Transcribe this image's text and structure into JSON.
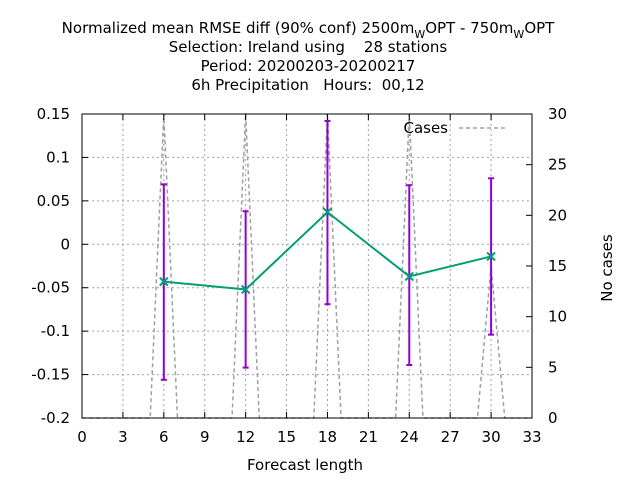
{
  "chart_data": {
    "type": "line",
    "title": {
      "line1_prefix": "Normalized mean RMSE diff (90% conf) 2500m",
      "line1_sub1": "W",
      "line1_mid": "OPT - 750m",
      "line1_sub2": "W",
      "line1_suffix": "OPT",
      "line2": "Selection: Ireland using    28 stations",
      "line3": "Period: 20200203-20200217",
      "line4": "6h Precipitation   Hours:  00,12"
    },
    "xlabel": "Forecast length",
    "ylabel": "",
    "y2label": "No cases",
    "xlim": [
      0,
      33
    ],
    "ylim": [
      -0.2,
      0.15
    ],
    "y2lim": [
      0,
      30
    ],
    "xticks": [
      "0",
      "3",
      "6",
      "9",
      "12",
      "15",
      "18",
      "21",
      "24",
      "27",
      "30",
      "33"
    ],
    "yticks": [
      "-0.2",
      "-0.15",
      "-0.1",
      "-0.05",
      "0",
      "0.05",
      "0.1",
      "0.15"
    ],
    "y2ticks": [
      "0",
      "5",
      "10",
      "15",
      "20",
      "25",
      "30"
    ],
    "grid": true,
    "legend_position": "top-right",
    "series": [
      {
        "name": "",
        "role": "mean difference with 90% confidence interval",
        "color": "#009e73",
        "errorbar_color": "#9400d3",
        "x": [
          6,
          12,
          18,
          24,
          30
        ],
        "y": [
          -0.043,
          -0.052,
          0.037,
          -0.037,
          -0.014
        ],
        "ylow": [
          -0.156,
          -0.142,
          -0.069,
          -0.139,
          -0.104
        ],
        "yhigh": [
          0.069,
          0.038,
          0.142,
          0.068,
          0.076
        ]
      },
      {
        "name": "Cases",
        "axis": "y2",
        "color": "#a0a0a0",
        "dashed": true,
        "x": [
          0,
          5,
          6,
          7,
          11,
          12,
          13,
          17,
          18,
          19,
          23,
          24,
          25,
          29,
          30,
          31,
          33
        ],
        "y": [
          0,
          0,
          30,
          0,
          0,
          30,
          0,
          0,
          30,
          0,
          0,
          30,
          0,
          0,
          15,
          0,
          0
        ]
      }
    ]
  }
}
